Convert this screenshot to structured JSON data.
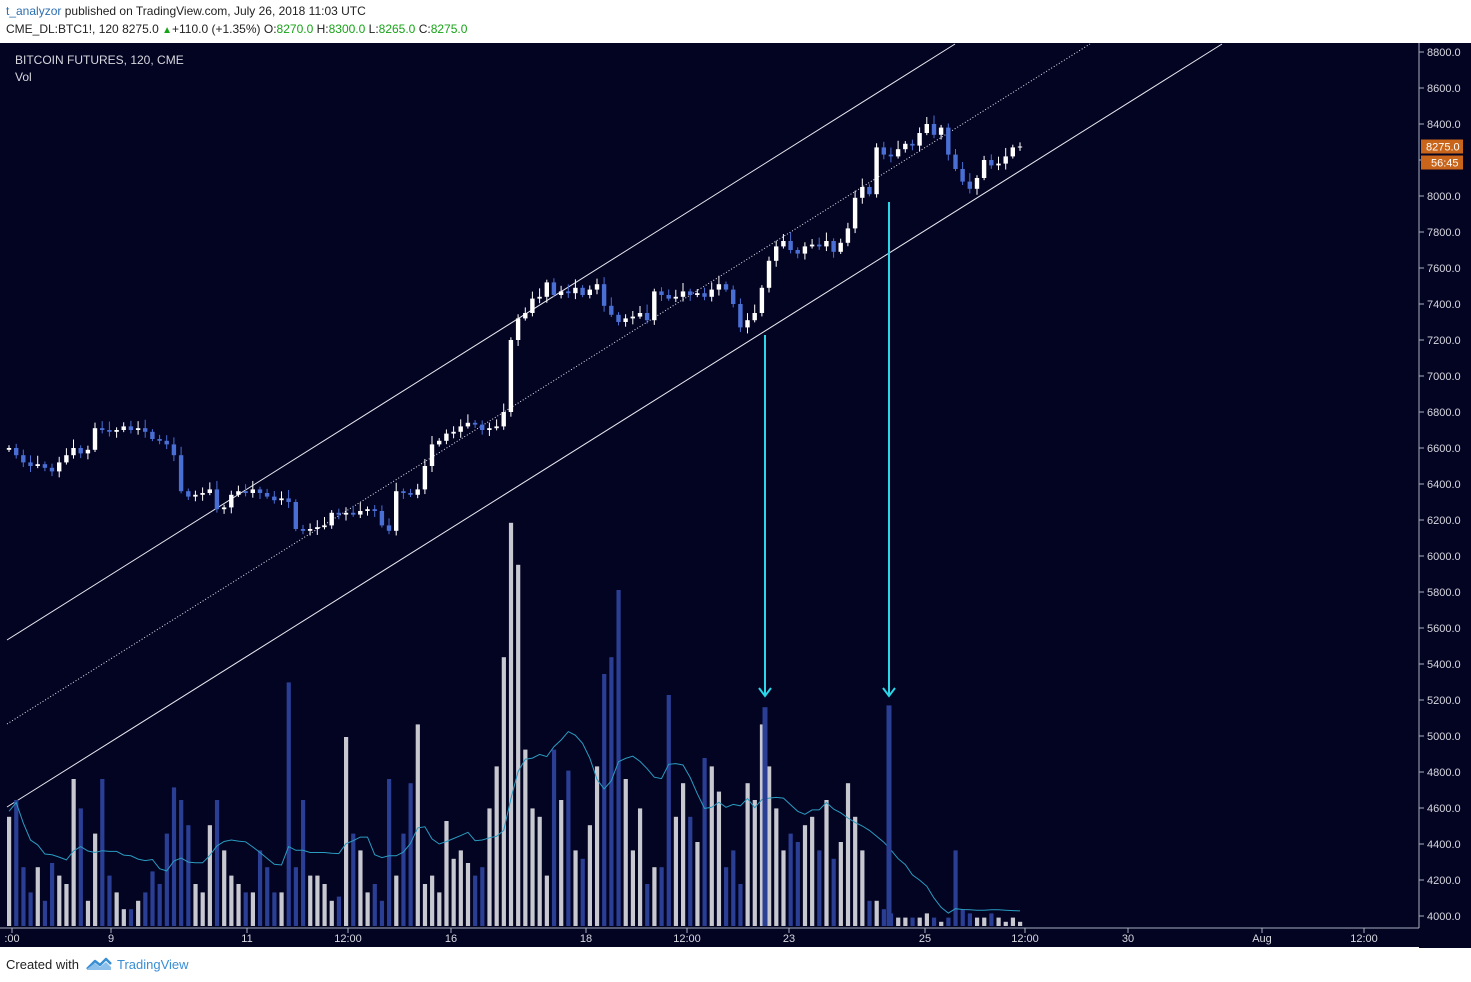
{
  "header": {
    "author": "t_analyzor",
    "published_text": "published on TradingView.com, July 26, 2018 11:03 UTC",
    "symbol": "CME_DL:BTC1!, 120",
    "last": "8275.0",
    "change_arrow": "▲",
    "change": "+110.0 (+1.35%)",
    "o_label": "O:",
    "o_value": "8270.0",
    "h_label": "H:",
    "h_value": "8300.0",
    "l_label": "L:",
    "l_value": "8265.0",
    "c_label": "C:",
    "c_value": "8275.0"
  },
  "chart_title": "BITCOIN FUTURES, 120, CME",
  "volume_label": "Vol",
  "price_tag": "8275.0",
  "countdown_tag": "56:45",
  "colors": {
    "background": "#030322",
    "candle_up": "#ffffff",
    "candle_down": "#4a6fd4",
    "vol_up": "#c8c8d0",
    "vol_down": "#2a3f94",
    "vol_ma": "#2a9cc0",
    "arrow": "#2ad6e8",
    "channel": "#e8e8f0",
    "tag": "#c8651a"
  },
  "footer": {
    "created_with": "Created with",
    "brand": "TradingView"
  },
  "chart_data": {
    "type": "candlestick",
    "title": "BITCOIN FUTURES, 120, CME",
    "ylim": [
      3900,
      8900
    ],
    "y_ticks": [
      "8800.0",
      "8600.0",
      "8400.0",
      "8200.0",
      "8000.0",
      "7800.0",
      "7600.0",
      "7400.0",
      "7200.0",
      "7000.0",
      "6800.0",
      "6600.0",
      "6400.0",
      "6200.0",
      "6000.0",
      "5800.0",
      "5600.0",
      "5400.0",
      "5200.0",
      "5000.0",
      "4800.0",
      "4600.0",
      "4400.0",
      "4200.0",
      "4000.0"
    ],
    "x_ticks": [
      ":00",
      "9",
      "11",
      "12:00",
      "16",
      "18",
      "12:00",
      "23",
      "25",
      "12:00",
      "30",
      "Aug",
      "12:00"
    ],
    "series": [
      {
        "name": "price",
        "start": 6590,
        "closes": [
          6600,
          6560,
          6520,
          6500,
          6510,
          6490,
          6470,
          6520,
          6560,
          6600,
          6570,
          6590,
          6710,
          6700,
          6690,
          6700,
          6720,
          6700,
          6710,
          6690,
          6650,
          6640,
          6620,
          6560,
          6360,
          6330,
          6340,
          6350,
          6370,
          6260,
          6270,
          6340,
          6360,
          6350,
          6370,
          6350,
          6330,
          6310,
          6320,
          6300,
          6150,
          6140,
          6150,
          6160,
          6170,
          6240,
          6230,
          6240,
          6230,
          6250,
          6260,
          6250,
          6170,
          6140,
          6360,
          6350,
          6340,
          6370,
          6500,
          6620,
          6640,
          6680,
          6690,
          6720,
          6740,
          6730,
          6700,
          6710,
          6720,
          6800,
          7200,
          7320,
          7350,
          7430,
          7440,
          7520,
          7450,
          7470,
          7460,
          7490,
          7450,
          7480,
          7510,
          7390,
          7340,
          7300,
          7320,
          7330,
          7350,
          7310,
          7470,
          7450,
          7430,
          7440,
          7470,
          7450,
          7460,
          7440,
          7480,
          7510,
          7480,
          7400,
          7270,
          7310,
          7350,
          7490,
          7640,
          7720,
          7750,
          7700,
          7680,
          7720,
          7730,
          7720,
          7750,
          7690,
          7740,
          7820,
          7990,
          8050,
          8010,
          8270,
          8230,
          8220,
          8260,
          8290,
          8280,
          8350,
          8400,
          8340,
          8380,
          8230,
          8150,
          8080,
          8040,
          8100,
          8200,
          8170,
          8180,
          8220,
          8270,
          8275
        ]
      },
      {
        "name": "Vol",
        "values": [
          26,
          30,
          14,
          8,
          14,
          6,
          15,
          12,
          10,
          35,
          28,
          6,
          22,
          35,
          12,
          8,
          4,
          4,
          6,
          8,
          13,
          10,
          22,
          33,
          30,
          24,
          10,
          8,
          24,
          30,
          18,
          12,
          10,
          8,
          8,
          18,
          14,
          8,
          8,
          58,
          14,
          30,
          12,
          12,
          10,
          6,
          7,
          45,
          22,
          18,
          8,
          10,
          6,
          35,
          12,
          22,
          34,
          48,
          10,
          12,
          8,
          25,
          16,
          18,
          15,
          12,
          14,
          28,
          38,
          64,
          96,
          86,
          42,
          28,
          26,
          12,
          42,
          30,
          37,
          18,
          16,
          24,
          38,
          60,
          64,
          80,
          35,
          18,
          28,
          10,
          14,
          14,
          55,
          26,
          34,
          26,
          20,
          40,
          38,
          32,
          14,
          18,
          10,
          34,
          30,
          48,
          38,
          28,
          18,
          22,
          20,
          24,
          26,
          18,
          30,
          16,
          20,
          34,
          26,
          18,
          6,
          6,
          4,
          3,
          2,
          2,
          2,
          2,
          3,
          2,
          1,
          2,
          18,
          4,
          3,
          2,
          2,
          3,
          2,
          1,
          2,
          1
        ],
        "marked_spikes": [
          5160,
          5170
        ]
      }
    ]
  }
}
